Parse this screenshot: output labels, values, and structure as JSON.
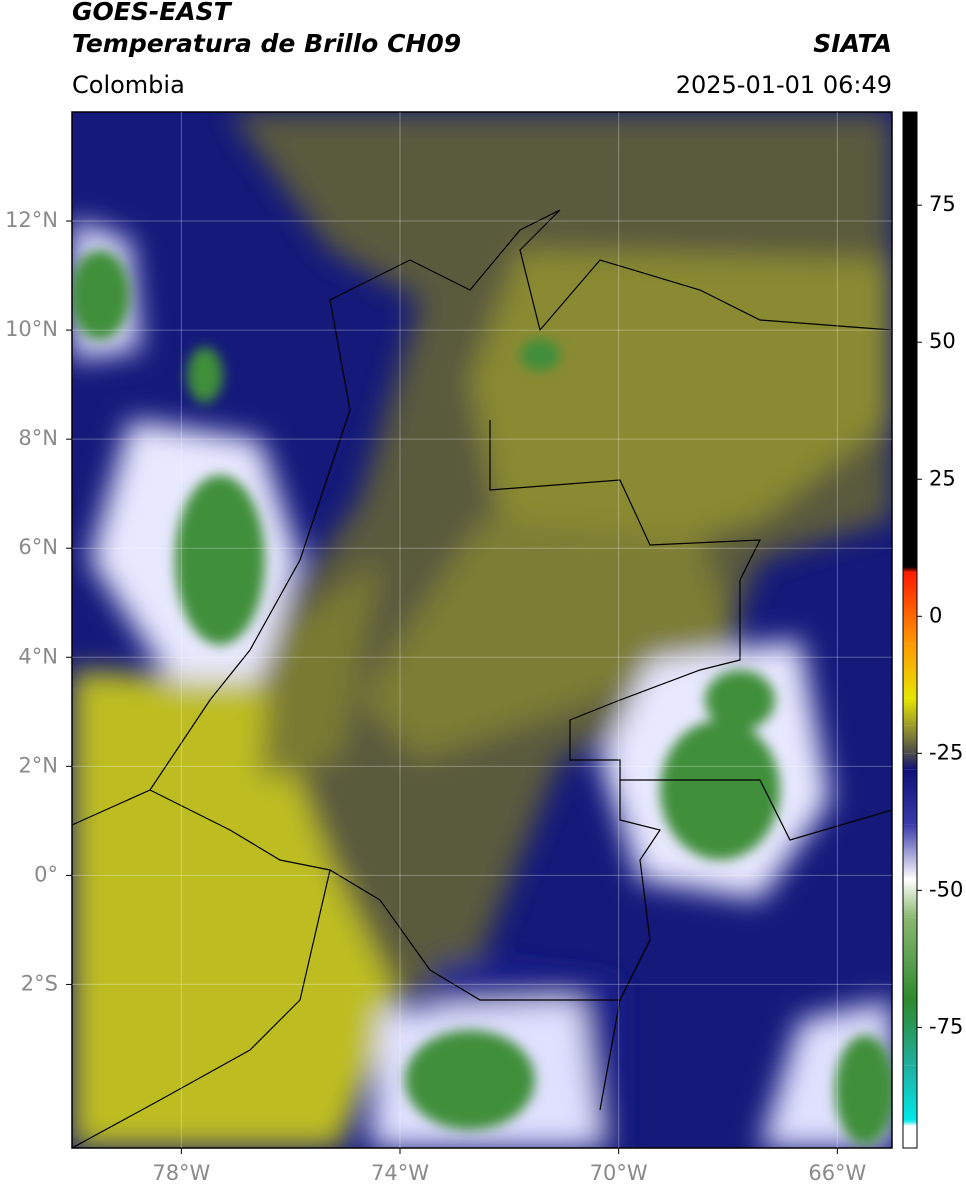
{
  "header": {
    "title": "GOES-EAST",
    "subtitle": "Temperatura de Brillo CH09",
    "source": "SIATA",
    "region": "Colombia",
    "datetime": "2025-01-01 06:49"
  },
  "map": {
    "lon_range": [
      -80,
      -65
    ],
    "lat_range": [
      -5,
      14
    ],
    "lon_ticks": [
      {
        "value": -78,
        "label": "78°W"
      },
      {
        "value": -74,
        "label": "74°W"
      },
      {
        "value": -70,
        "label": "70°W"
      },
      {
        "value": -66,
        "label": "66°W"
      }
    ],
    "lat_ticks": [
      {
        "value": 12,
        "label": "12°N"
      },
      {
        "value": 10,
        "label": "10°N"
      },
      {
        "value": 8,
        "label": "8°N"
      },
      {
        "value": 6,
        "label": "6°N"
      },
      {
        "value": 4,
        "label": "4°N"
      },
      {
        "value": 2,
        "label": "2°N"
      },
      {
        "value": 0,
        "label": "0°"
      },
      {
        "value": -2,
        "label": "2°S"
      }
    ]
  },
  "colorbar": {
    "range": [
      -97,
      92
    ],
    "ticks": [
      75,
      50,
      25,
      0,
      -25,
      -50,
      -75
    ],
    "stops": [
      {
        "value": 92,
        "color": "#000000"
      },
      {
        "value": 9,
        "color": "#000000"
      },
      {
        "value": 8,
        "color": "#ff1a00"
      },
      {
        "value": -5,
        "color": "#ff9900"
      },
      {
        "value": -15,
        "color": "#e6e600"
      },
      {
        "value": -20,
        "color": "#9a9a2a"
      },
      {
        "value": -25,
        "color": "#4a4a4a"
      },
      {
        "value": -28,
        "color": "#10107a"
      },
      {
        "value": -38,
        "color": "#3a3aaa"
      },
      {
        "value": -48,
        "color": "#ffffff"
      },
      {
        "value": -55,
        "color": "#8ab870"
      },
      {
        "value": -70,
        "color": "#2e8a2e"
      },
      {
        "value": -82,
        "color": "#20b0a0"
      },
      {
        "value": -92,
        "color": "#00e8e8"
      },
      {
        "value": -93,
        "color": "#ffffff"
      },
      {
        "value": -97,
        "color": "#ffffff"
      }
    ]
  }
}
